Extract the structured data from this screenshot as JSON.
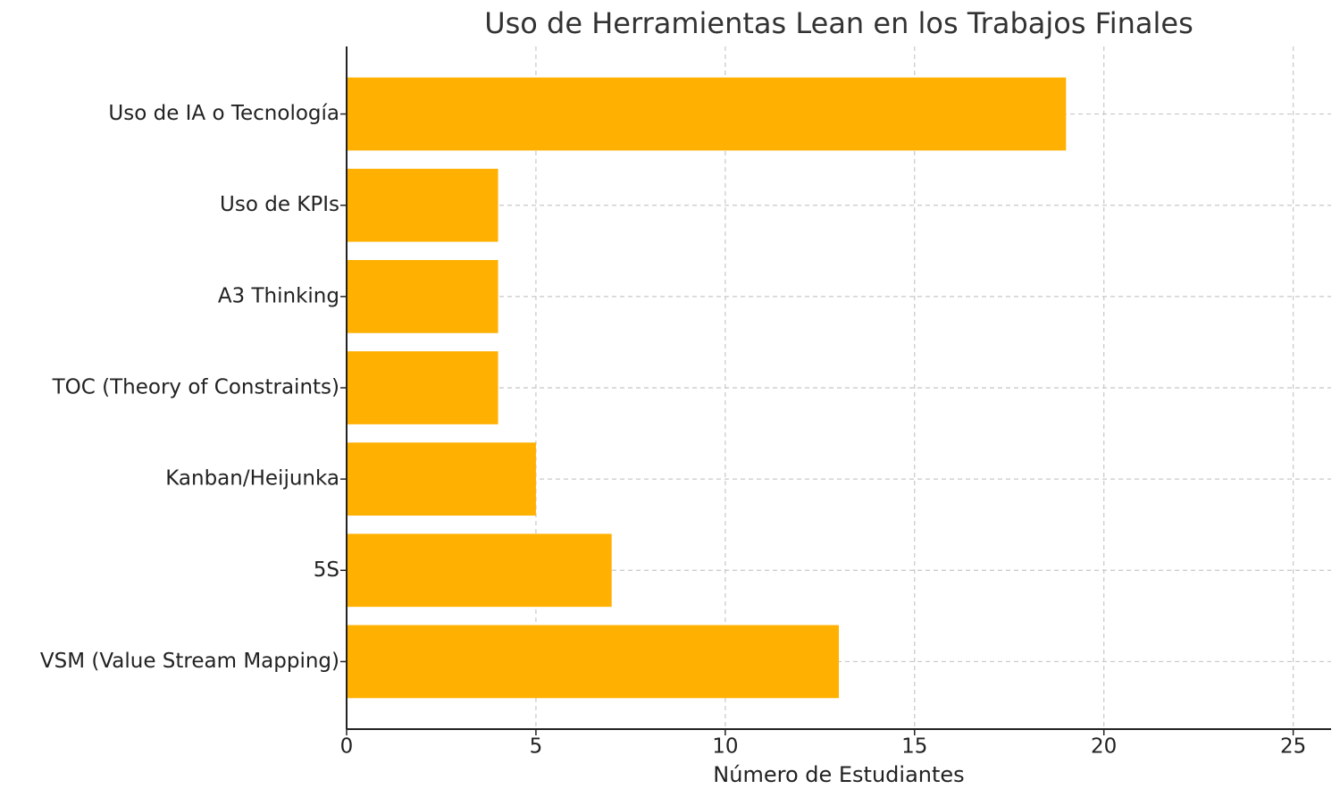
{
  "chart_data": {
    "type": "barh",
    "title": "Uso de Herramientas Lean en los Trabajos Finales",
    "x_label": "Número de Estudiantes",
    "categories": [
      "VSM (Value Stream Mapping)",
      "5S",
      "Kanban/Heijunka",
      "TOC (Theory of Constraints)",
      "A3 Thinking",
      "Uso de KPIs",
      "Uso de IA o Tecnología"
    ],
    "values": [
      13,
      7,
      5,
      4,
      4,
      4,
      19
    ],
    "color": "#ffb000",
    "xlim": [
      0,
      26
    ],
    "xticks": [
      0,
      5,
      10,
      15,
      20,
      25
    ],
    "grid": true
  }
}
